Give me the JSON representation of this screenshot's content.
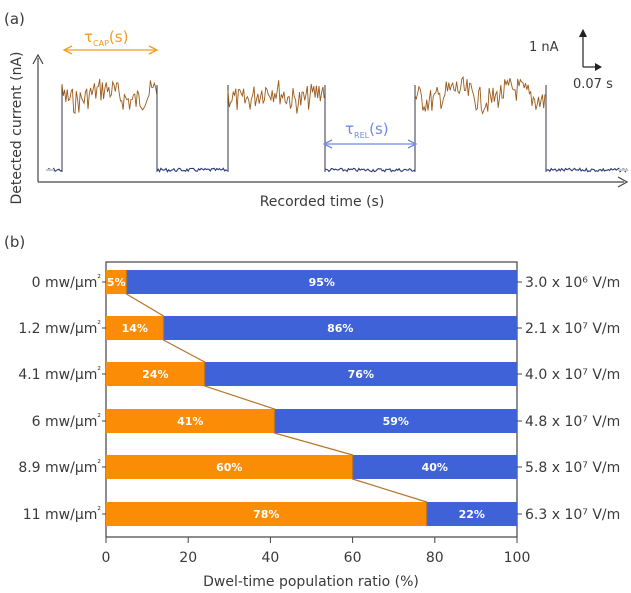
{
  "chart_data": [
    {
      "panel": "(a)",
      "type": "line",
      "xlabel": "Recorded time (s)",
      "ylabel": "Detected current (nA)",
      "scale_bar": {
        "current": "1 nA",
        "time": "0.07 s"
      },
      "annotations": {
        "capture": {
          "symbol": "τ",
          "sub": "CAP",
          "suffix": "(s)"
        },
        "release": {
          "symbol": "τ",
          "sub": "REL",
          "suffix": "(s)"
        }
      },
      "states": [
        "low",
        "high",
        "low",
        "high",
        "low",
        "high",
        "low"
      ],
      "colors": {
        "captured": "#9a5a1c",
        "released": "#2d3a78",
        "edge": "#c8c8c8",
        "tau_cap": "#f39c1e",
        "tau_rel": "#6f8be0"
      }
    },
    {
      "panel": "(b)",
      "type": "bar",
      "orientation": "horizontal-stacked",
      "xlabel": "Dwel-time population ratio (%)",
      "xlim": [
        0,
        100
      ],
      "xticks": [
        "0",
        "20",
        "40",
        "60",
        "80",
        "100"
      ],
      "categories": [
        "0 mw/μm²",
        "1.2 mw/μm²",
        "4.1 mw/μm²",
        "6 mw/μm²",
        "8.9 mw/μm²",
        "11 mw/μm²"
      ],
      "right_labels": [
        "3.0 x 10⁶ V/m",
        "2.1 x 10⁷ V/m",
        "4.0 x 10⁷ V/m",
        "4.8 x 10⁷ V/m",
        "5.8 x 10⁷ V/m",
        "6.3 x 10⁷ V/m"
      ],
      "series": [
        {
          "values": [
            5,
            14,
            24,
            41,
            60,
            78
          ],
          "labels": [
            "5%",
            "14%",
            "24%",
            "41%",
            "60%",
            "78%"
          ],
          "color": "#fb8c06"
        },
        {
          "values": [
            95,
            86,
            76,
            59,
            40,
            22
          ],
          "labels": [
            "95%",
            "86%",
            "76%",
            "59%",
            "40%",
            "22%"
          ],
          "color": "#3f62d9"
        }
      ],
      "connector_color": "#b8752a"
    }
  ]
}
